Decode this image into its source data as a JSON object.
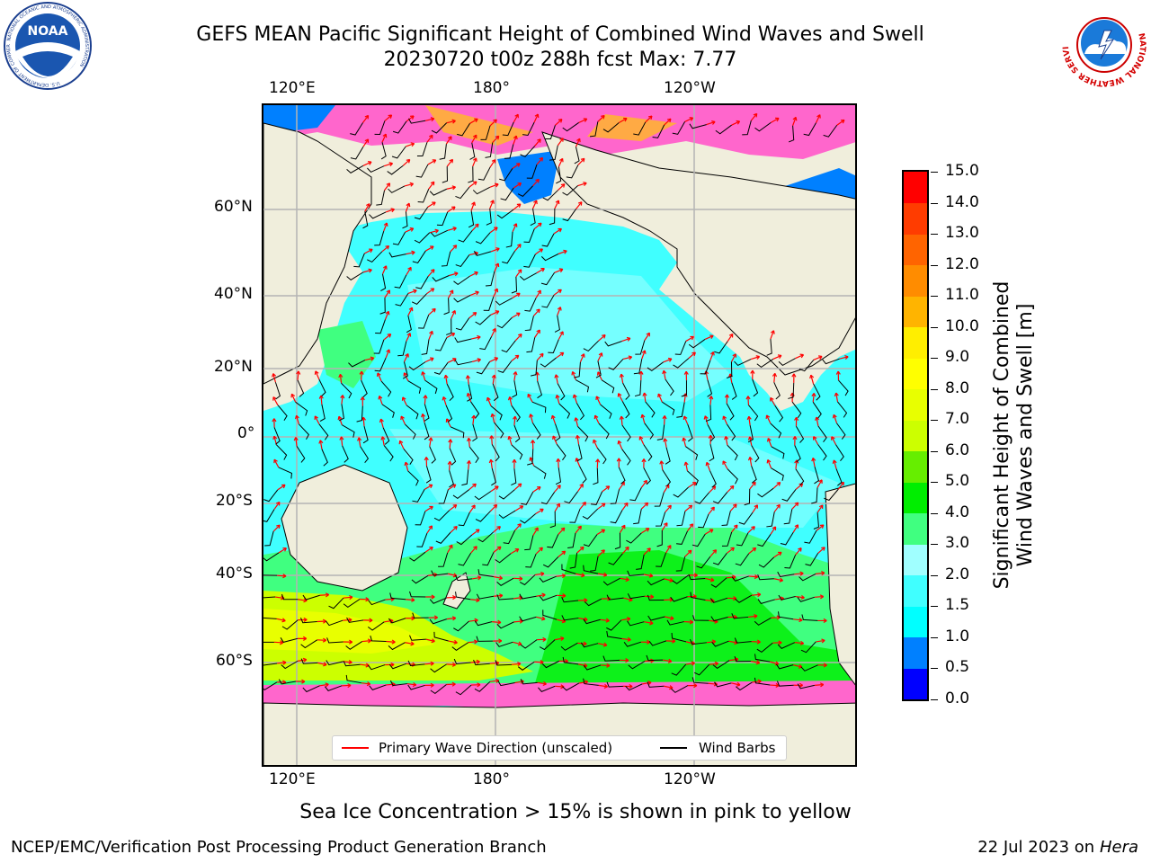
{
  "header": {
    "title_line1": "GEFS MEAN Pacific Significant Height of Combined Wind Waves and Swell",
    "title_line2": "20230720 t00z 288h fcst   Max: 7.77"
  },
  "logos": {
    "noaa_text": "NOAA",
    "noaa_ring_text": "NATIONAL OCEANIC AND ATMOSPHERIC ADMINISTRATION",
    "noaa_ring_bottom": "U.S. DEPARTMENT OF COMMERCE",
    "nws_ring_text": "NATIONAL WEATHER SERVICE"
  },
  "map": {
    "top_lon_labels": [
      "120°E",
      "180°",
      "120°W"
    ],
    "bottom_lon_labels": [
      "120°E",
      "180°",
      "120°W"
    ],
    "lat_labels": [
      "60°N",
      "40°N",
      "20°N",
      "0°",
      "20°S",
      "40°S",
      "60°S"
    ],
    "colors": {
      "land": "#f0eedc",
      "ice_pink": "#ff66cc",
      "ice_orange": "#ffaa44",
      "arrow": "#ff0000",
      "barb": "#000000",
      "grid": "#b4b4b4"
    }
  },
  "legend": {
    "primary_wave_label": "Primary Wave Direction (unscaled)",
    "wind_barbs_label": "Wind Barbs",
    "primary_wave_color": "#ff0000",
    "wind_barbs_color": "#000000"
  },
  "colorbar": {
    "title_line1": "Significant Height of Combined",
    "title_line2": "Wind Waves and Swell [m]",
    "tick_labels": [
      "0.0",
      "0.5",
      "1.0",
      "1.5",
      "2.0",
      "3.0",
      "4.0",
      "5.0",
      "6.0",
      "7.0",
      "8.0",
      "9.0",
      "10.0",
      "11.0",
      "12.0",
      "13.0",
      "14.0",
      "15.0"
    ],
    "colors": [
      "#0000ff",
      "#0080ff",
      "#00ffff",
      "#40ffff",
      "#a0ffff",
      "#40ff80",
      "#00ee00",
      "#66ee00",
      "#ccff00",
      "#e8ff00",
      "#ffff00",
      "#ffee00",
      "#ffb400",
      "#ff8c00",
      "#ff6400",
      "#ff3c00",
      "#ff0000"
    ]
  },
  "notes": {
    "ice_note": "Sea Ice Concentration > 15% is shown in pink to yellow"
  },
  "footer": {
    "left": "NCEP/EMC/Verification Post Processing Product Generation Branch",
    "date": "22 Jul 2023 on ",
    "machine": "Hera"
  }
}
